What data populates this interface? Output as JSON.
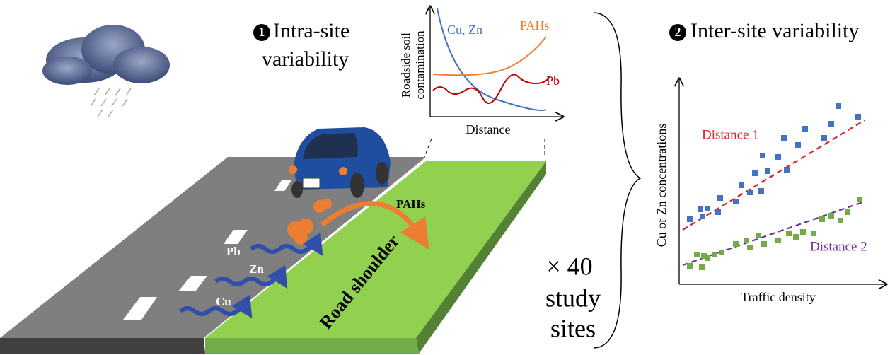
{
  "intra_site": {
    "number": "1",
    "line1": "Intra-site",
    "line2": "variability"
  },
  "inset_chart": {
    "y_label_line1": "Roadside soil",
    "y_label_line2": "contamination",
    "x_label": "Distance",
    "curves": {
      "cu_zn": "Cu, Zn",
      "pahs": "PAHs",
      "pb": "Pb"
    }
  },
  "road": {
    "pahs": "PAHs",
    "pb": "Pb",
    "zn": "Zn",
    "cu": "Cu",
    "shoulder": "Road shoulder"
  },
  "sites": {
    "line1": "× 40",
    "line2": "study",
    "line3": "sites"
  },
  "inter_site": {
    "number": "2",
    "label": "Inter-site variability",
    "y_label": "Cu or Zn concentrations",
    "x_label": "Traffic density",
    "distance_1": "Distance 1",
    "distance_2": "Distance 2"
  }
}
